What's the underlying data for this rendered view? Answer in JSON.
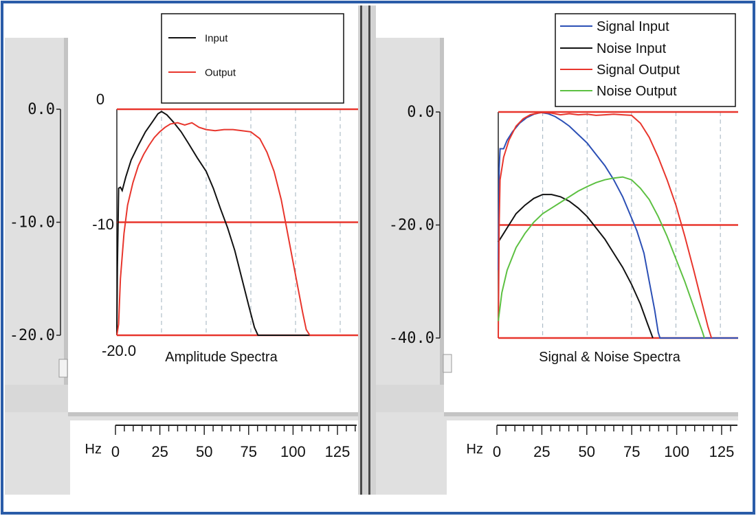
{
  "chart_data": [
    {
      "type": "line",
      "title": "Amplitude Spectra",
      "xlabel": "Hz",
      "ylabel": "",
      "xlim": [
        0,
        135
      ],
      "ylim": [
        -20,
        0
      ],
      "x_ticks": [
        "0",
        "25",
        "50",
        "75",
        "100",
        "125"
      ],
      "outer_y_ticks": [
        "0.0",
        "-10.0",
        "-20.0"
      ],
      "inner_y_ticks": [
        "0",
        "-10",
        "-20.0"
      ],
      "grid": true,
      "legend_position": "top",
      "series": [
        {
          "name": "Input",
          "color": "#111111",
          "points": [
            [
              0,
              -20
            ],
            [
              0.3,
              -14
            ],
            [
              1,
              -7
            ],
            [
              2,
              -6.9
            ],
            [
              3,
              -7.2
            ],
            [
              5,
              -6
            ],
            [
              8,
              -4.5
            ],
            [
              12,
              -3.2
            ],
            [
              16,
              -2
            ],
            [
              20,
              -1.1
            ],
            [
              23,
              -0.4
            ],
            [
              25,
              -0.2
            ],
            [
              28,
              -0.5
            ],
            [
              32,
              -1.2
            ],
            [
              36,
              -2
            ],
            [
              40,
              -3
            ],
            [
              45,
              -4.3
            ],
            [
              50,
              -5.5
            ],
            [
              54,
              -7
            ],
            [
              58,
              -8.8
            ],
            [
              62,
              -10.5
            ],
            [
              66,
              -12.5
            ],
            [
              70,
              -15
            ],
            [
              74,
              -17.5
            ],
            [
              77,
              -19.3
            ],
            [
              79,
              -20
            ],
            [
              108,
              -20
            ]
          ]
        },
        {
          "name": "Output",
          "color": "#e8352c",
          "points": [
            [
              0,
              -20
            ],
            [
              1,
              -19
            ],
            [
              2,
              -15
            ],
            [
              4,
              -11
            ],
            [
              6,
              -8.5
            ],
            [
              9,
              -6.5
            ],
            [
              12,
              -5
            ],
            [
              15,
              -4
            ],
            [
              18,
              -3.2
            ],
            [
              21,
              -2.5
            ],
            [
              24,
              -2
            ],
            [
              27,
              -1.6
            ],
            [
              30,
              -1.3
            ],
            [
              34,
              -1.2
            ],
            [
              38,
              -1.4
            ],
            [
              42,
              -1.2
            ],
            [
              46,
              -1.6
            ],
            [
              50,
              -1.8
            ],
            [
              55,
              -1.9
            ],
            [
              60,
              -1.8
            ],
            [
              65,
              -1.8
            ],
            [
              70,
              -1.9
            ],
            [
              75,
              -2
            ],
            [
              80,
              -2.6
            ],
            [
              84,
              -3.8
            ],
            [
              88,
              -5.5
            ],
            [
              92,
              -8
            ],
            [
              95,
              -10.5
            ],
            [
              98,
              -13
            ],
            [
              101,
              -15.5
            ],
            [
              104,
              -18
            ],
            [
              106,
              -19.5
            ],
            [
              108,
              -20
            ]
          ]
        }
      ],
      "reference_lines": [
        0,
        -10,
        -20
      ]
    },
    {
      "type": "line",
      "title": "Signal & Noise Spectra",
      "xlabel": "Hz",
      "ylabel": "",
      "xlim": [
        0,
        135
      ],
      "ylim": [
        -40,
        0
      ],
      "x_ticks": [
        "0",
        "25",
        "50",
        "75",
        "100",
        "125"
      ],
      "y_ticks": [
        "0.0",
        "-20.0",
        "-40.0"
      ],
      "grid": true,
      "legend_position": "top-right",
      "series": [
        {
          "name": "Signal Input",
          "color": "#2b4fb5",
          "points": [
            [
              0,
              -28
            ],
            [
              0.5,
              -10
            ],
            [
              1,
              -6.5
            ],
            [
              3,
              -6.5
            ],
            [
              5,
              -5
            ],
            [
              8,
              -3.5
            ],
            [
              12,
              -2
            ],
            [
              16,
              -1
            ],
            [
              20,
              -0.4
            ],
            [
              24,
              -0.1
            ],
            [
              28,
              -0.3
            ],
            [
              32,
              -0.8
            ],
            [
              36,
              -1.6
            ],
            [
              40,
              -2.5
            ],
            [
              45,
              -4
            ],
            [
              50,
              -5.5
            ],
            [
              55,
              -7.5
            ],
            [
              60,
              -9.5
            ],
            [
              65,
              -12
            ],
            [
              70,
              -15
            ],
            [
              74,
              -18
            ],
            [
              78,
              -21
            ],
            [
              82,
              -25
            ],
            [
              85,
              -30
            ],
            [
              88,
              -35
            ],
            [
              90,
              -39
            ],
            [
              91,
              -40
            ],
            [
              135,
              -40
            ]
          ]
        },
        {
          "name": "Noise Input",
          "color": "#111111",
          "points": [
            [
              0,
              -23
            ],
            [
              3,
              -21.5
            ],
            [
              6,
              -20
            ],
            [
              10,
              -18
            ],
            [
              15,
              -16.5
            ],
            [
              20,
              -15.3
            ],
            [
              25,
              -14.6
            ],
            [
              30,
              -14.6
            ],
            [
              35,
              -15
            ],
            [
              40,
              -15.8
            ],
            [
              45,
              -17
            ],
            [
              50,
              -18.5
            ],
            [
              55,
              -20.5
            ],
            [
              60,
              -22.5
            ],
            [
              65,
              -25
            ],
            [
              70,
              -27.5
            ],
            [
              75,
              -30.5
            ],
            [
              80,
              -34
            ],
            [
              84,
              -37.5
            ],
            [
              87,
              -40
            ]
          ]
        },
        {
          "name": "Signal Output",
          "color": "#e8352c",
          "points": [
            [
              0,
              -40
            ],
            [
              0.5,
              -20
            ],
            [
              1,
              -12
            ],
            [
              3,
              -8
            ],
            [
              6,
              -5
            ],
            [
              10,
              -2.5
            ],
            [
              14,
              -1.2
            ],
            [
              18,
              -0.5
            ],
            [
              22,
              -0.2
            ],
            [
              25,
              -0.1
            ],
            [
              30,
              -0.2
            ],
            [
              35,
              -0.5
            ],
            [
              40,
              -0.3
            ],
            [
              45,
              -0.5
            ],
            [
              50,
              -0.4
            ],
            [
              55,
              -0.6
            ],
            [
              60,
              -0.5
            ],
            [
              65,
              -0.4
            ],
            [
              70,
              -0.5
            ],
            [
              75,
              -0.6
            ],
            [
              80,
              -2
            ],
            [
              85,
              -4.5
            ],
            [
              90,
              -8
            ],
            [
              95,
              -12
            ],
            [
              100,
              -16.5
            ],
            [
              105,
              -22
            ],
            [
              110,
              -28
            ],
            [
              114,
              -33
            ],
            [
              118,
              -38
            ],
            [
              120,
              -40
            ]
          ]
        },
        {
          "name": "Noise Output",
          "color": "#5cc041",
          "points": [
            [
              0,
              -37
            ],
            [
              2,
              -32
            ],
            [
              5,
              -28
            ],
            [
              10,
              -24
            ],
            [
              15,
              -21.5
            ],
            [
              20,
              -19.5
            ],
            [
              25,
              -18
            ],
            [
              30,
              -17
            ],
            [
              35,
              -16
            ],
            [
              40,
              -15
            ],
            [
              45,
              -14
            ],
            [
              50,
              -13.2
            ],
            [
              55,
              -12.5
            ],
            [
              60,
              -12
            ],
            [
              65,
              -11.7
            ],
            [
              70,
              -11.5
            ],
            [
              75,
              -12
            ],
            [
              80,
              -13.5
            ],
            [
              85,
              -15.5
            ],
            [
              90,
              -18.5
            ],
            [
              95,
              -22
            ],
            [
              100,
              -26
            ],
            [
              105,
              -30
            ],
            [
              110,
              -34.5
            ],
            [
              115,
              -39
            ],
            [
              116,
              -40
            ]
          ]
        }
      ],
      "reference_lines": [
        0,
        -20,
        -40
      ]
    }
  ]
}
